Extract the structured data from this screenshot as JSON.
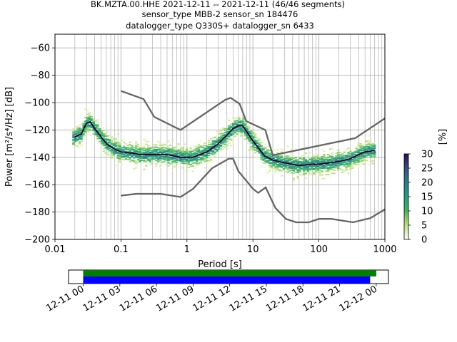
{
  "chart_data": {
    "type": "ppsd",
    "title_lines": [
      "BK.MZTA.00.HHE   2021-12-11 -- 2021-12-11  (46/46 segments)",
      "sensor_type MBB-2 sensor_sn 184476",
      "datalogger_type Q330S+ datalogger_sn 6433"
    ],
    "xlabel": "Period [s]",
    "ylabel": "Power [m²/s⁴/Hz] [dB]",
    "x_scale": "log",
    "xlim": [
      0.01,
      1000
    ],
    "ylim": [
      -200,
      -50
    ],
    "x_ticks": [
      0.01,
      0.1,
      1,
      10,
      100,
      1000
    ],
    "x_tick_labels": [
      "0.01",
      "0.1",
      "1",
      "10",
      "100",
      "1000"
    ],
    "y_ticks": [
      -60,
      -80,
      -100,
      -120,
      -140,
      -160,
      -180,
      -200
    ],
    "grid": true,
    "colorbar": {
      "label": "[%]",
      "ticks": [
        0,
        5,
        10,
        15,
        20,
        25,
        30
      ],
      "range": [
        0,
        30
      ]
    },
    "noise_model_high": {
      "x": [
        0.1,
        0.22,
        0.32,
        0.8,
        3.8,
        4.6,
        6.3,
        7.9,
        15.4,
        20,
        354.8,
        1000
      ],
      "y": [
        -91.5,
        -97.4,
        -110.5,
        -120,
        -98,
        -96.5,
        -101,
        -113.5,
        -120,
        -138.5,
        -126,
        -111.5
      ]
    },
    "noise_model_low": {
      "x": [
        0.1,
        0.17,
        0.4,
        0.8,
        1.24,
        2.4,
        4.3,
        5,
        6,
        10,
        12,
        15.6,
        21.9,
        31.6,
        45,
        70,
        101,
        154,
        328,
        600,
        1000
      ],
      "y": [
        -168,
        -166.7,
        -166.7,
        -169,
        -163,
        -148,
        -141,
        -141,
        -150,
        -163,
        -166,
        -162,
        -177,
        -185,
        -187.5,
        -187.5,
        -185,
        -185,
        -187.5,
        -184.5,
        -178
      ]
    },
    "mean_curve": {
      "x": [
        0.02,
        0.025,
        0.03,
        0.034,
        0.04,
        0.05,
        0.06,
        0.08,
        0.1,
        0.15,
        0.2,
        0.3,
        0.5,
        0.8,
        1.2,
        1.6,
        2,
        3,
        4,
        5,
        6,
        7,
        8,
        10,
        15,
        20,
        30,
        50,
        80,
        100,
        150,
        200,
        300,
        400,
        500,
        700
      ],
      "y": [
        -125,
        -123,
        -115,
        -114,
        -119,
        -125,
        -130,
        -134,
        -136,
        -137,
        -138,
        -138,
        -138,
        -140,
        -140,
        -138,
        -136,
        -130,
        -124,
        -119,
        -117,
        -117,
        -121,
        -128,
        -139,
        -142,
        -144,
        -146,
        -145,
        -145,
        -144,
        -143,
        -141,
        -138,
        -136,
        -135
      ]
    },
    "time_axis": {
      "tick_labels": [
        "12-11 00",
        "12-11 03",
        "12-11 06",
        "12-11 09",
        "12-11 12",
        "12-11 15",
        "12-11 18",
        "12-11 21",
        "12-12 00"
      ],
      "range_hours": [
        -1.2,
        25
      ],
      "segments_all_hours": [
        0,
        24
      ],
      "segments_used_hours": [
        0,
        23.5
      ],
      "colors": {
        "all": "#008000",
        "used": "#0000ff"
      }
    }
  }
}
